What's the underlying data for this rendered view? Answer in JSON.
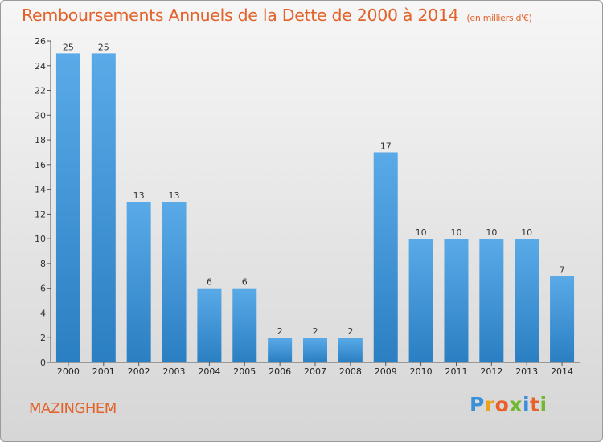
{
  "title": {
    "main": "Remboursements Annuels de la Dette de 2000 à 2014",
    "unit": "(en milliers d'€)"
  },
  "location": "MAZINGHEM",
  "logo": {
    "letters": [
      "P",
      "r",
      "o",
      "x",
      "i",
      "t",
      "i"
    ],
    "colors": [
      "#3a8fd8",
      "#e9a41f",
      "#e8612a",
      "#6fb82f",
      "#3a8fd8",
      "#e8612a",
      "#6fb82f"
    ]
  },
  "colors": {
    "title": "#e2622a",
    "bar_top": "#5aaae8",
    "bar_bottom": "#2a7fc2"
  },
  "chart_data": {
    "type": "bar",
    "categories": [
      "2000",
      "2001",
      "2002",
      "2003",
      "2004",
      "2005",
      "2006",
      "2007",
      "2008",
      "2009",
      "2010",
      "2011",
      "2012",
      "2013",
      "2014"
    ],
    "values": [
      25,
      25,
      13,
      13,
      6,
      6,
      2,
      2,
      2,
      17,
      10,
      10,
      10,
      10,
      7
    ],
    "title": "Remboursements Annuels de la Dette de 2000 à 2014",
    "ylim": [
      0,
      26
    ],
    "yticks": [
      0,
      2,
      4,
      6,
      8,
      10,
      12,
      14,
      16,
      18,
      20,
      22,
      24,
      26
    ],
    "grid": false,
    "legend": "none",
    "data_labels": true
  }
}
